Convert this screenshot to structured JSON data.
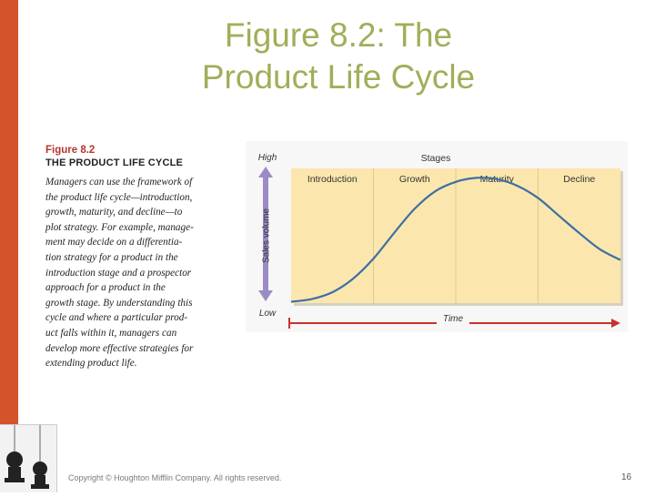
{
  "slide": {
    "title_line1": "Figure 8.2: The",
    "title_line2": "Product Life Cycle",
    "copyright": "Copyright © Houghton Mifflin Company. All rights reserved.",
    "page_number": "16"
  },
  "caption": {
    "figure_number": "Figure 8.2",
    "figure_title": "THE PRODUCT LIFE CYCLE",
    "lines": [
      "Managers can use the framework of",
      "the product life cycle—introduction,",
      "growth, maturity, and decline—to",
      "plot strategy. For example, manage-",
      "ment may decide on a differentia-",
      "tion strategy for a product in the",
      "introduction stage and a prospector",
      "approach for a product in the",
      "growth stage. By understanding this",
      "cycle and where a particular prod-",
      "uct falls within it, managers can",
      "develop more effective strategies for",
      "extending product life."
    ]
  },
  "colors": {
    "left_bar": "#d4532a",
    "title": "#a3ad5a",
    "chart_panel": "#fbe7ad",
    "curve": "#3d6fa5",
    "sales_arrow": "#9b8cc6",
    "time_arrow": "#c8322e",
    "figure_label": "#b2362e"
  },
  "chart_data": {
    "type": "line",
    "title": "Stages",
    "stages": [
      "Introduction",
      "Growth",
      "Maturity",
      "Decline"
    ],
    "xlabel": "Time",
    "ylabel": "Sales volume",
    "y_high_label": "High",
    "y_low_label": "Low",
    "xlim": [
      0,
      4
    ],
    "ylim": [
      0,
      1
    ],
    "series": [
      {
        "x": [
          0,
          0.25,
          0.5,
          0.75,
          1.0,
          1.25,
          1.5,
          1.75,
          2.0,
          2.25,
          2.5,
          2.75,
          3.0,
          3.25,
          3.5,
          3.75,
          4.0
        ],
        "values": [
          0.01,
          0.03,
          0.08,
          0.18,
          0.33,
          0.52,
          0.7,
          0.83,
          0.9,
          0.93,
          0.92,
          0.87,
          0.78,
          0.65,
          0.52,
          0.4,
          0.32
        ]
      }
    ],
    "grid": false,
    "legend": "none"
  }
}
